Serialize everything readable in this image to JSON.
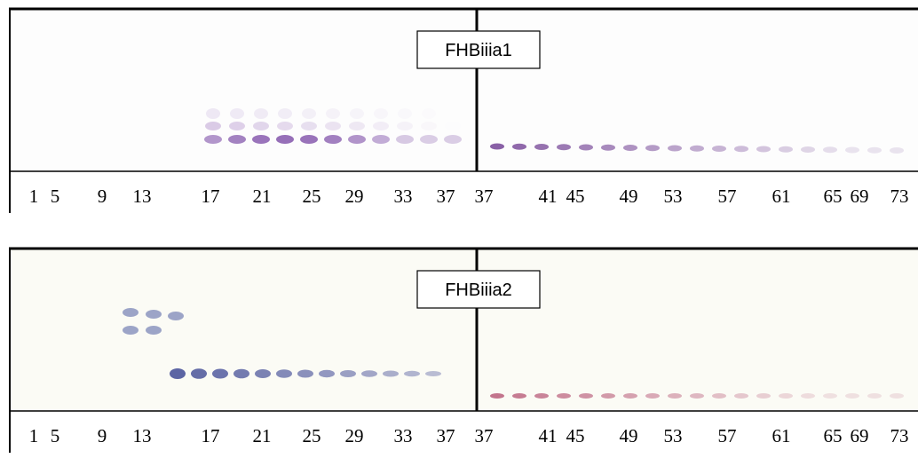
{
  "panels": [
    {
      "label": "FHBiiia1",
      "lanes": [
        1,
        5,
        9,
        13,
        17,
        21,
        25,
        29,
        33,
        37,
        37,
        41,
        45,
        49,
        53,
        57,
        61,
        65,
        69,
        73
      ]
    },
    {
      "label": "FHBiiia2",
      "lanes": [
        1,
        5,
        9,
        13,
        17,
        21,
        25,
        29,
        33,
        37,
        37,
        41,
        45,
        49,
        53,
        57,
        61,
        65,
        69,
        73
      ]
    }
  ]
}
